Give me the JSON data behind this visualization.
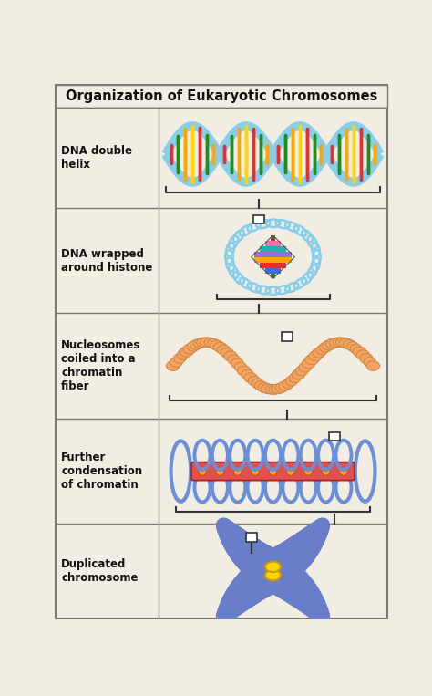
{
  "title": "Organization of Eukaryotic Chromosomes",
  "bg_color": "#f2ede3",
  "border_color": "#7a7a72",
  "title_fontsize": 10.5,
  "row_tops": [
    729,
    586,
    436,
    286,
    136,
    2
  ],
  "col_split": 148,
  "helix_color": "#87ceeb",
  "bar_colors_dna": [
    "#e63030",
    "#228B22",
    "#FFA500",
    "#FFD700"
  ],
  "nucleosome_fill": "#F4A460",
  "nucleosome_edge": "#CD853F",
  "coil_color": "#87ceeb",
  "loop_color": "#6a8fd8",
  "scaffold_color": "#e05050",
  "node_color": "#FFA040",
  "chrom_color": "#6a7dc9",
  "chrom_edge": "#4555a0",
  "centromere_color": "#FFD700",
  "connector_fill": "#ffffff",
  "connector_edge": "#333333",
  "bracket_color": "#333333"
}
